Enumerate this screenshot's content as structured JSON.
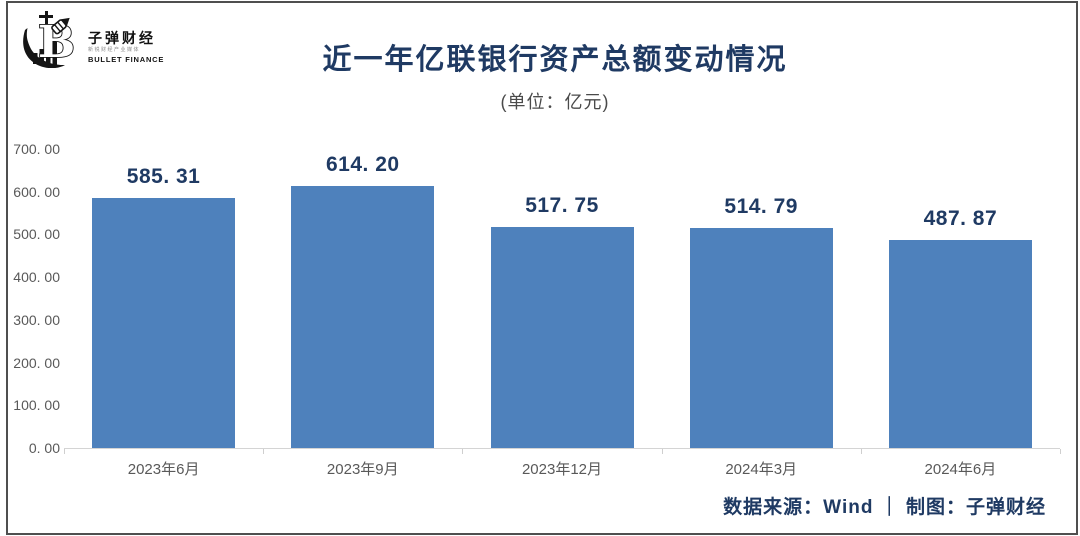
{
  "logo": {
    "name": "子弹财经",
    "tagline": "新锐财经产业媒体",
    "subname": "BULLET FINANCE"
  },
  "header": {
    "title": "近一年亿联银行资产总额变动情况",
    "subtitle": "(单位：亿元)"
  },
  "chart_data": {
    "type": "bar",
    "title": "近一年亿联银行资产总额变动情况",
    "unit_note": "(单位：亿元)",
    "categories": [
      "2023年6月",
      "2023年9月",
      "2023年12月",
      "2024年3月",
      "2024年6月"
    ],
    "values": [
      585.31,
      614.2,
      517.75,
      514.79,
      487.87
    ],
    "value_labels": [
      "585. 31",
      "614. 20",
      "517. 75",
      "514. 79",
      "487. 87"
    ],
    "y_tick_labels": [
      "700. 00",
      "600. 00",
      "500. 00",
      "400. 00",
      "300. 00",
      "200. 00",
      "100. 00",
      "0. 00"
    ],
    "ylim": [
      0,
      700
    ],
    "xlabel": "",
    "ylabel": "",
    "grid": false,
    "legend": "none",
    "bar_color": "#4E81BC",
    "value_label_color": "#1F3A63",
    "axis_label_color": "#595959"
  },
  "footer": {
    "source_text": "数据来源：Wind ｜ 制图：子弹财经"
  }
}
